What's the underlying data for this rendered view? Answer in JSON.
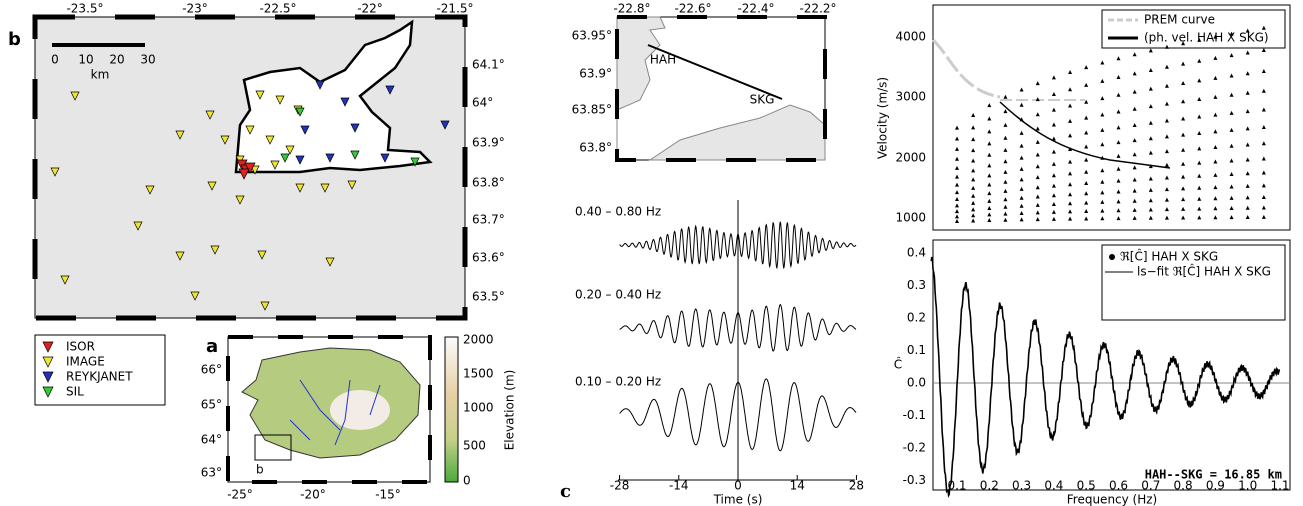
{
  "panel_b": {
    "label": "b",
    "x_ticks": [
      "-23.5°",
      "-23°",
      "-22.5°",
      "-22°",
      "-21.5°"
    ],
    "y_ticks": [
      "64.1°",
      "64°",
      "63.9°",
      "63.8°",
      "63.7°",
      "63.6°",
      "63.5°"
    ],
    "scale_ticks": [
      "0",
      "10",
      "20",
      "30"
    ],
    "scale_unit": "km"
  },
  "legend": {
    "items": [
      "ISOR",
      "IMAGE",
      "REYKJANET",
      "SIL"
    ]
  },
  "panel_a": {
    "label": "a",
    "inset_label": "b",
    "y_ticks": [
      "66°",
      "65°",
      "64°",
      "63°"
    ],
    "x_ticks": [
      "-25°",
      "-20°",
      "-15°"
    ],
    "colorbar_ticks": [
      "2000",
      "1500",
      "1000",
      "500",
      "0"
    ],
    "colorbar_label": "Elevation (m)"
  },
  "panel_c": {
    "label": "c",
    "x_ticks": [
      "-22.8°",
      "-22.6°",
      "-22.4°",
      "-22.2°"
    ],
    "y_ticks": [
      "63.95°",
      "63.9°",
      "63.85°",
      "63.8°"
    ],
    "stations": [
      "HAH",
      "SKG"
    ],
    "bands": [
      "0.40 – 0.80 Hz",
      "0.20 – 0.40 Hz",
      "0.10 – 0.20 Hz"
    ],
    "time_ticks": [
      "-28",
      "-14",
      "0",
      "14",
      "28"
    ],
    "time_label": "Time (s)"
  },
  "velocity": {
    "y_ticks": [
      "4000",
      "3000",
      "2000",
      "1000"
    ],
    "y_label": "Velocity (m/s)",
    "legend": [
      "PREM curve",
      "(ph. vel. HAH X SKG)"
    ]
  },
  "coherency": {
    "y_ticks": [
      "0.4",
      "0.3",
      "0.2",
      "0.1",
      "0.0",
      "-0.1",
      "-0.2",
      "-0.3"
    ],
    "x_ticks": [
      "0.1",
      "0.2",
      "0.3",
      "0.4",
      "0.5",
      "0.6",
      "0.7",
      "0.8",
      "0.9",
      "1.0",
      "1.1"
    ],
    "x_label": "Frequency (Hz)",
    "y_label": "Ĉ",
    "legend": [
      "ℜ[Ĉ]  HAH X SKG",
      "ls−fit ℜ[Ĉ]  HAH X SKG"
    ],
    "annotation": "HAH--SKG = 16.85 km"
  }
}
